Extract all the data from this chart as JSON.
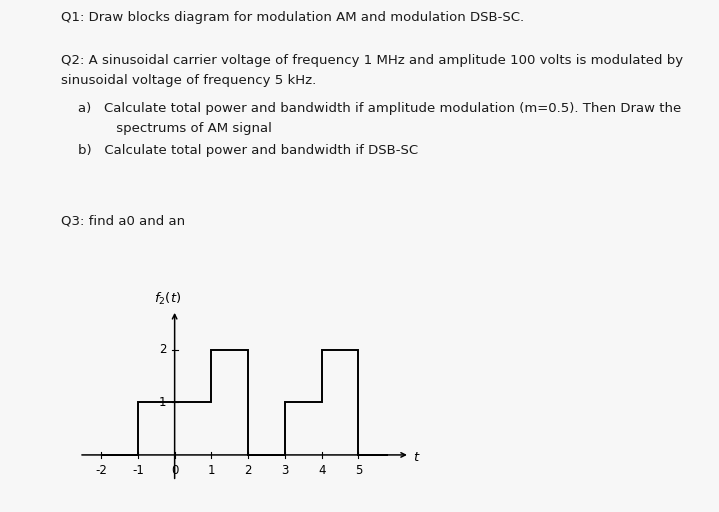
{
  "q1_text": "Q1: Draw blocks diagram for modulation AM and modulation DSB-SC.",
  "q2_line1": "Q2: A sinusoidal carrier voltage of frequency 1 MHz and amplitude 100 volts is modulated by",
  "q2_line2": "sinusoidal voltage of frequency 5 kHz.",
  "q2a_line1": "    a)   Calculate total power and bandwidth if amplitude modulation (m=0.5). Then Draw the",
  "q2a_line2": "             spectrums of AM signal",
  "q2b_text": "    b)   Calculate total power and bandwidth if DSB-SC",
  "q3_text": "Q3: find a0 and an",
  "bg_color": "#f7f7f7",
  "text_color": "#1a1a1a",
  "step_x": [
    -2,
    -1,
    -1,
    0,
    0,
    1,
    1,
    2,
    2,
    3,
    3,
    4,
    4,
    5,
    5,
    5.8
  ],
  "step_y": [
    0,
    0,
    1,
    1,
    1,
    1,
    2,
    2,
    0,
    0,
    1,
    1,
    2,
    2,
    0,
    0
  ],
  "xlim": [
    -2.6,
    6.4
  ],
  "ylim": [
    -0.5,
    2.9
  ],
  "xticks": [
    -2,
    -1,
    0,
    1,
    2,
    3,
    4,
    5
  ],
  "yticks": [
    1,
    2
  ],
  "xlabel": "t",
  "ylabel": "f_2(t)"
}
